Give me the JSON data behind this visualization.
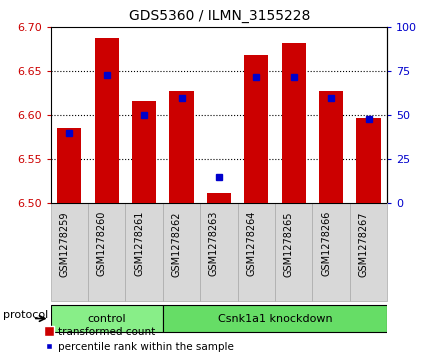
{
  "title": "GDS5360 / ILMN_3155228",
  "samples": [
    "GSM1278259",
    "GSM1278260",
    "GSM1278261",
    "GSM1278262",
    "GSM1278263",
    "GSM1278264",
    "GSM1278265",
    "GSM1278266",
    "GSM1278267"
  ],
  "transformed_count": [
    6.585,
    6.688,
    6.616,
    6.628,
    6.512,
    6.668,
    6.682,
    6.628,
    6.597
  ],
  "percentile_rank": [
    40,
    73,
    50,
    60,
    15,
    72,
    72,
    60,
    48
  ],
  "ylim_left": [
    6.5,
    6.7
  ],
  "ylim_right": [
    0,
    100
  ],
  "yticks_left": [
    6.5,
    6.55,
    6.6,
    6.65,
    6.7
  ],
  "yticks_right": [
    0,
    25,
    50,
    75,
    100
  ],
  "bar_color": "#cc0000",
  "marker_color": "#0000cc",
  "baseline": 6.5,
  "bar_width": 0.65,
  "ctrl_count": 3,
  "groups": [
    {
      "label": "control",
      "color": "#88ee88"
    },
    {
      "label": "Csnk1a1 knockdown",
      "color": "#66dd66"
    }
  ],
  "protocol_label": "protocol",
  "legend_red": "transformed count",
  "legend_blue": "percentile rank within the sample",
  "tick_label_bg": "#d8d8d8",
  "plot_bg": "#ffffff"
}
